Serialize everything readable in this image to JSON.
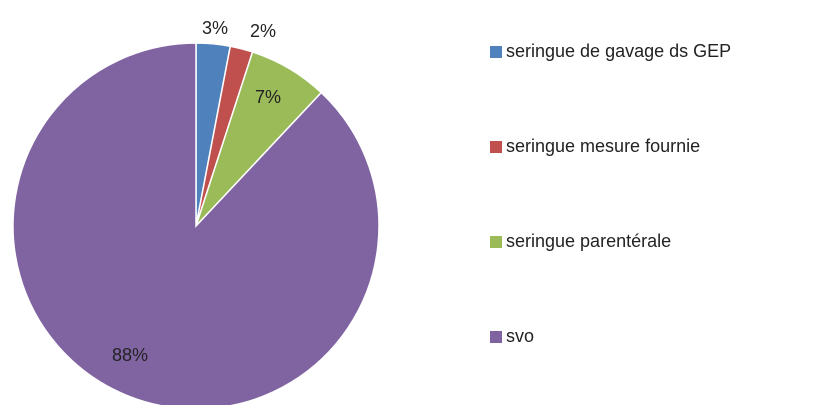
{
  "chart_data": {
    "type": "pie",
    "categories": [
      "seringue de gavage ds GEP",
      "seringue mesure fournie",
      "seringue parentérale",
      "svo"
    ],
    "values": [
      3,
      2,
      7,
      88
    ],
    "value_labels": [
      "3%",
      "2%",
      "7%",
      "88%"
    ],
    "colors": [
      "#4f81bd",
      "#c0504d",
      "#9bbb59",
      "#8064a2"
    ],
    "legend": "right"
  }
}
